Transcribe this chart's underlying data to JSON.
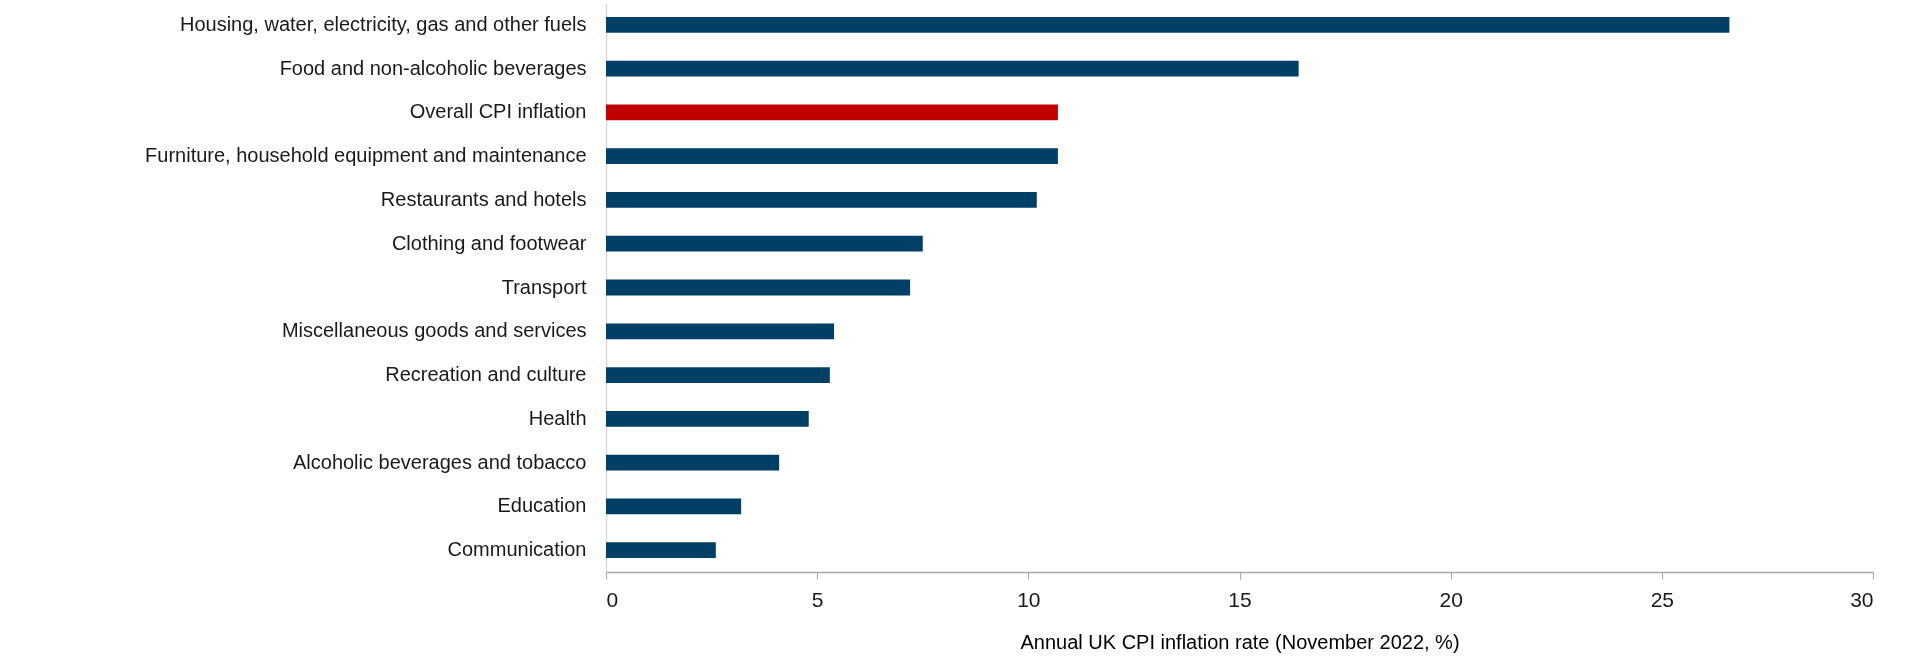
{
  "chart_data": {
    "type": "bar",
    "orientation": "horizontal",
    "categories": [
      "Housing, water, electricity, gas and other fuels",
      "Food and non-alcoholic beverages",
      "Overall CPI inflation",
      "Furniture, household equipment and maintenance",
      "Restaurants and hotels",
      "Clothing and footwear",
      "Transport",
      "Miscellaneous goods and services",
      "Recreation and culture",
      "Health",
      "Alcoholic beverages and tobacco",
      "Education",
      "Communication"
    ],
    "values": [
      26.6,
      16.4,
      10.7,
      10.7,
      10.2,
      7.5,
      7.2,
      5.4,
      5.3,
      4.8,
      4.1,
      3.2,
      2.6
    ],
    "colors": [
      "#003f66",
      "#003f66",
      "#c00000",
      "#003f66",
      "#003f66",
      "#003f66",
      "#003f66",
      "#003f66",
      "#003f66",
      "#003f66",
      "#003f66",
      "#003f66",
      "#003f66"
    ],
    "xlabel": "Annual UK CPI inflation rate (November 2022, %)",
    "xlim": [
      0,
      30
    ],
    "xticks": [
      0,
      5,
      10,
      15,
      20,
      25,
      30
    ]
  }
}
